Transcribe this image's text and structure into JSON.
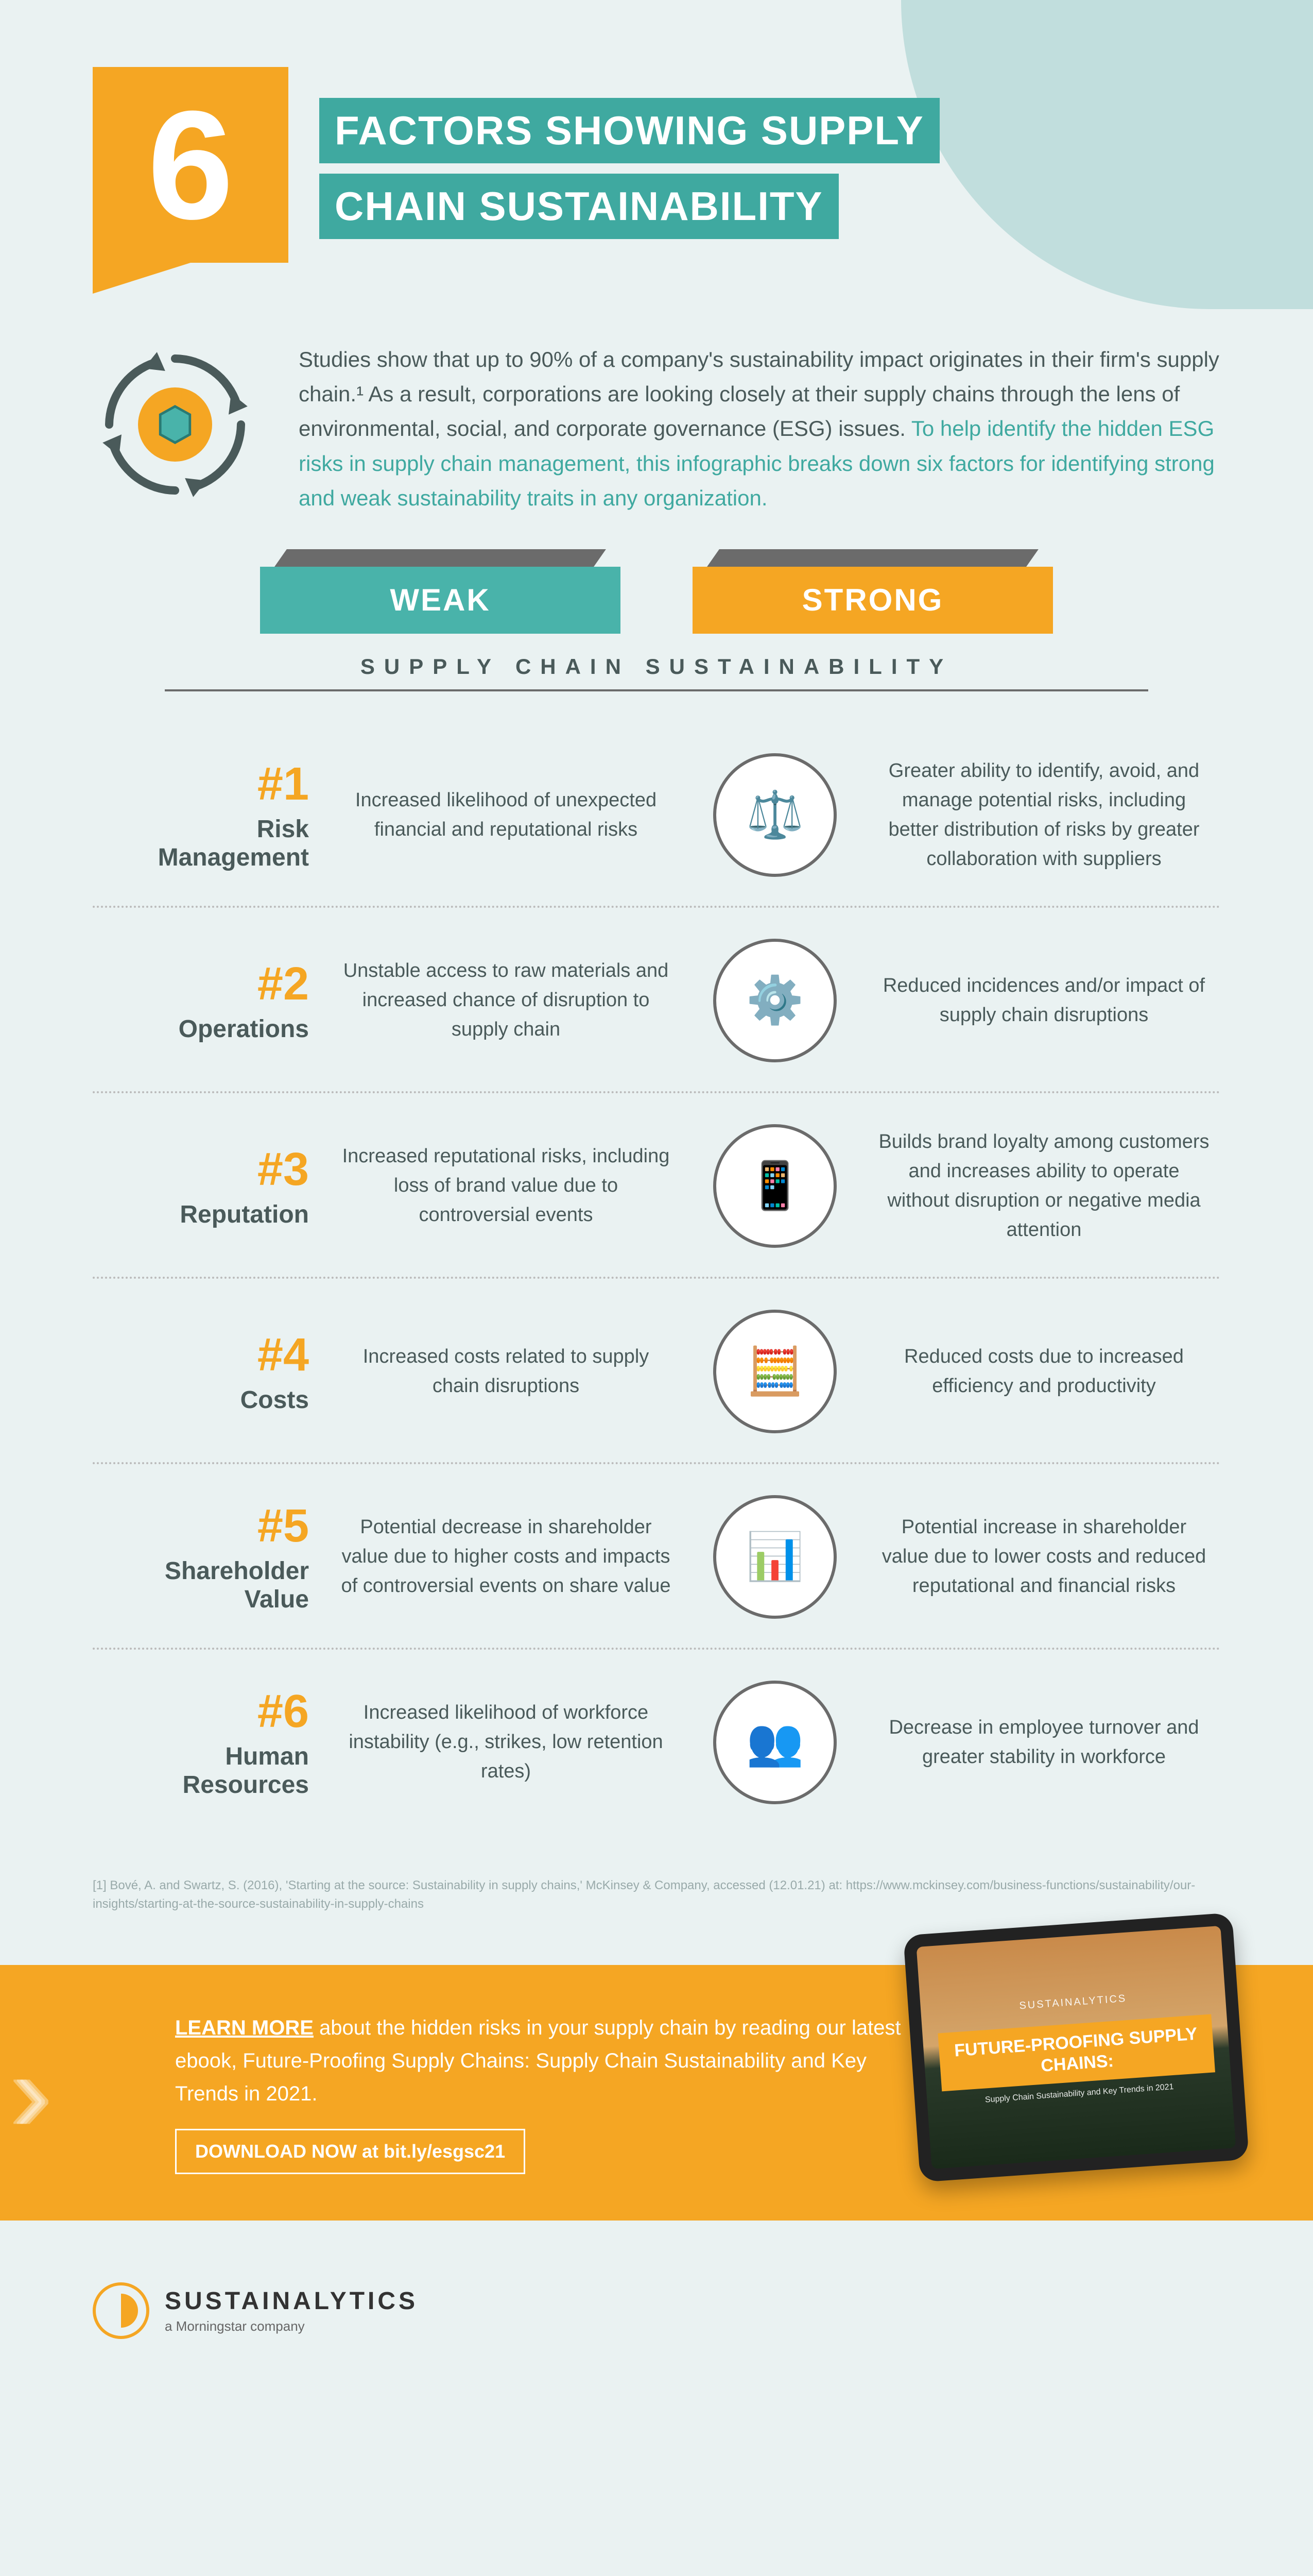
{
  "colors": {
    "bg": "#eaf2f2",
    "teal": "#49b3aa",
    "teal_dark": "#3fa9a0",
    "orange": "#f5a623",
    "gray": "#6b6b6b",
    "text": "#4a5a5a",
    "corner": "#c1dedd"
  },
  "header": {
    "number": "6",
    "title_line1": "FACTORS SHOWING SUPPLY",
    "title_line2": "CHAIN SUSTAINABILITY"
  },
  "intro": {
    "text_plain": "Studies show that up to 90% of a company's sustainability impact originates in their firm's supply chain.¹ As a result, corporations are looking closely at their supply chains through the lens of environmental, social, and corporate governance (ESG) issues. ",
    "text_highlight": "To help identify the hidden ESG risks in supply chain management, this infographic breaks down six factors for identifying strong and weak sustainability traits in any organization."
  },
  "tabs": {
    "weak": "WEAK",
    "strong": "STRONG"
  },
  "subtitle": "SUPPLY CHAIN SUSTAINABILITY",
  "factors": [
    {
      "num": "#1",
      "label": "Risk Management",
      "weak": "Increased likelihood of unexpected financial and reputational risks",
      "strong": "Greater ability to identify, avoid, and manage potential risks, including better distribution of risks by greater collaboration with suppliers",
      "icon": "⚖️"
    },
    {
      "num": "#2",
      "label": "Operations",
      "weak": "Unstable access to raw materials and increased chance of disruption to supply chain",
      "strong": "Reduced incidences and/or impact of supply chain disruptions",
      "icon": "⚙️"
    },
    {
      "num": "#3",
      "label": "Reputation",
      "weak": "Increased reputational risks, including loss of brand value due to controversial events",
      "strong": "Builds brand loyalty among customers and increases ability to operate without disruption or negative media attention",
      "icon": "📱"
    },
    {
      "num": "#4",
      "label": "Costs",
      "weak": "Increased costs related to supply chain disruptions",
      "strong": "Reduced costs due to increased efficiency and productivity",
      "icon": "🧮"
    },
    {
      "num": "#5",
      "label": "Shareholder Value",
      "weak": "Potential decrease in shareholder value due to higher costs and impacts of controversial events on share value",
      "strong": "Potential increase in shareholder value due to lower costs and reduced reputational and financial risks",
      "icon": "📊"
    },
    {
      "num": "#6",
      "label": "Human Resources",
      "weak": "Increased likelihood of workforce instability (e.g., strikes, low retention rates)",
      "strong": "Decrease in employee turnover and greater stability in workforce",
      "icon": "👥"
    }
  ],
  "citation": "[1] Bové, A. and Swartz, S. (2016), 'Starting at the source: Sustainability in supply chains,' McKinsey & Company, accessed (12.01.21) at: https://www.mckinsey.com/business-functions/sustainability/our-insights/starting-at-the-source-sustainability-in-supply-chains",
  "cta": {
    "learn_more": "LEARN MORE",
    "text": " about the hidden risks in your supply chain by reading our latest ebook, Future-Proofing Supply Chains: Supply Chain Sustainability and Key Trends in 2021.",
    "download": "DOWNLOAD NOW",
    "download_suffix": " at bit.ly/esgsc21",
    "tablet_logo": "SUSTAINALYTICS",
    "tablet_main": "FUTURE-PROOFING SUPPLY CHAINS:",
    "tablet_sub": "Supply Chain Sustainability and Key Trends in 2021"
  },
  "footer": {
    "name": "SUSTAINALYTICS",
    "sub": "a Morningstar company"
  }
}
